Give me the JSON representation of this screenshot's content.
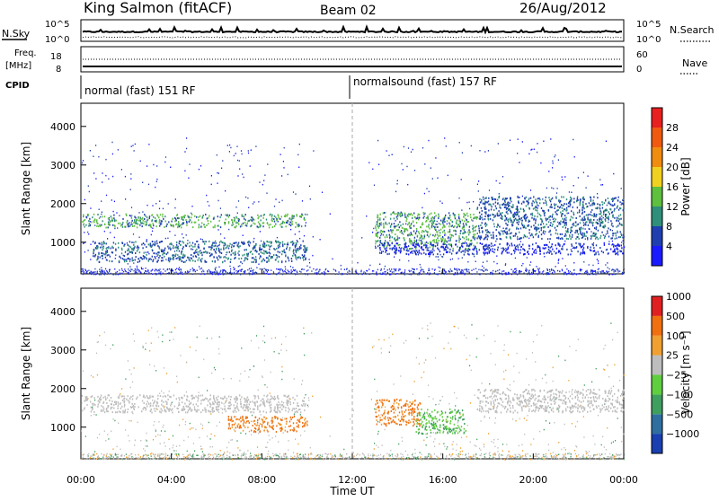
{
  "header": {
    "title": "King Salmon (fitACF)",
    "beam": "Beam 02",
    "date": "26/Aug/2012"
  },
  "status_panels": {
    "nsky_label": "N.Sky",
    "nsky_ticks": [
      "10^5",
      "10^0"
    ],
    "nsearch_label": "N.Search",
    "nsearch_ticks": [
      "10^5",
      "10^0"
    ],
    "freq_label_1": "Freq.",
    "freq_label_2": "[MHz]",
    "freq_ticks": [
      "18",
      "8"
    ],
    "nave_label": "Nave",
    "nave_ticks": [
      "60",
      "0"
    ],
    "cpid_label": "CPID",
    "cpid_segments": [
      {
        "label": "normal (fast) 151 RF",
        "start_hour": 0
      },
      {
        "label": "normalsound (fast) 157 RF",
        "start_hour": 12
      }
    ]
  },
  "time_axis": {
    "label": "Time UT",
    "ticks": [
      "00:00",
      "04:00",
      "08:00",
      "12:00",
      "16:00",
      "20:00",
      "00:00"
    ]
  },
  "range_axis": {
    "label": "Slant Range [km]",
    "ticks": [
      "1000",
      "2000",
      "3000",
      "4000"
    ]
  },
  "colorbars": {
    "power": {
      "label": "Power [dB]",
      "ticks": [
        "4",
        "8",
        "12",
        "16",
        "20",
        "24",
        "28"
      ],
      "colors": [
        "#1a1aff",
        "#1f3fb0",
        "#2f8f7a",
        "#5fbf3f",
        "#f0d020",
        "#f08c10",
        "#f05a10",
        "#e82020"
      ]
    },
    "velocity": {
      "label": "Velocity [m s⁻¹]",
      "ticks": [
        "1000",
        "500",
        "100",
        "25",
        "−25",
        "−100",
        "−500",
        "−1000"
      ],
      "colors": [
        "#1a3fb0",
        "#2f6fa0",
        "#3f9f5f",
        "#5fcf3f",
        "#bdbdbd",
        "#f0a030",
        "#f07010",
        "#e02020"
      ]
    }
  },
  "chart_data": [
    {
      "type": "heatmap",
      "name": "power",
      "x_range_hours": [
        0,
        24
      ],
      "y_range_km": [
        180,
        4600
      ],
      "color_scale": "Power [dB]",
      "bands": [
        {
          "t0": 0.0,
          "t1": 10.0,
          "r0": 1400,
          "r1": 1750,
          "level": "high"
        },
        {
          "t0": 0.5,
          "t1": 10.0,
          "r0": 500,
          "r1": 1050,
          "level": "medium"
        },
        {
          "t0": 13.0,
          "t1": 17.5,
          "r0": 850,
          "r1": 1800,
          "level": "high"
        },
        {
          "t0": 17.5,
          "t1": 24.0,
          "r0": 1100,
          "r1": 2200,
          "level": "medium"
        },
        {
          "t0": 13.0,
          "t1": 24.0,
          "r0": 700,
          "r1": 1000,
          "level": "low"
        }
      ]
    },
    {
      "type": "heatmap",
      "name": "velocity",
      "x_range_hours": [
        0,
        24
      ],
      "y_range_km": [
        180,
        4600
      ],
      "color_scale": "Velocity [m s⁻¹]",
      "bands": [
        {
          "t0": 0.0,
          "t1": 10.0,
          "r0": 1400,
          "r1": 1850,
          "level": "ground"
        },
        {
          "t0": 6.5,
          "t1": 10.0,
          "r0": 900,
          "r1": 1300,
          "level": "away"
        },
        {
          "t0": 13.0,
          "t1": 15.0,
          "r0": 1050,
          "r1": 1750,
          "level": "away"
        },
        {
          "t0": 14.8,
          "t1": 17.0,
          "r0": 850,
          "r1": 1500,
          "level": "toward"
        },
        {
          "t0": 17.5,
          "t1": 24.0,
          "r0": 1400,
          "r1": 2000,
          "level": "ground"
        }
      ]
    }
  ]
}
